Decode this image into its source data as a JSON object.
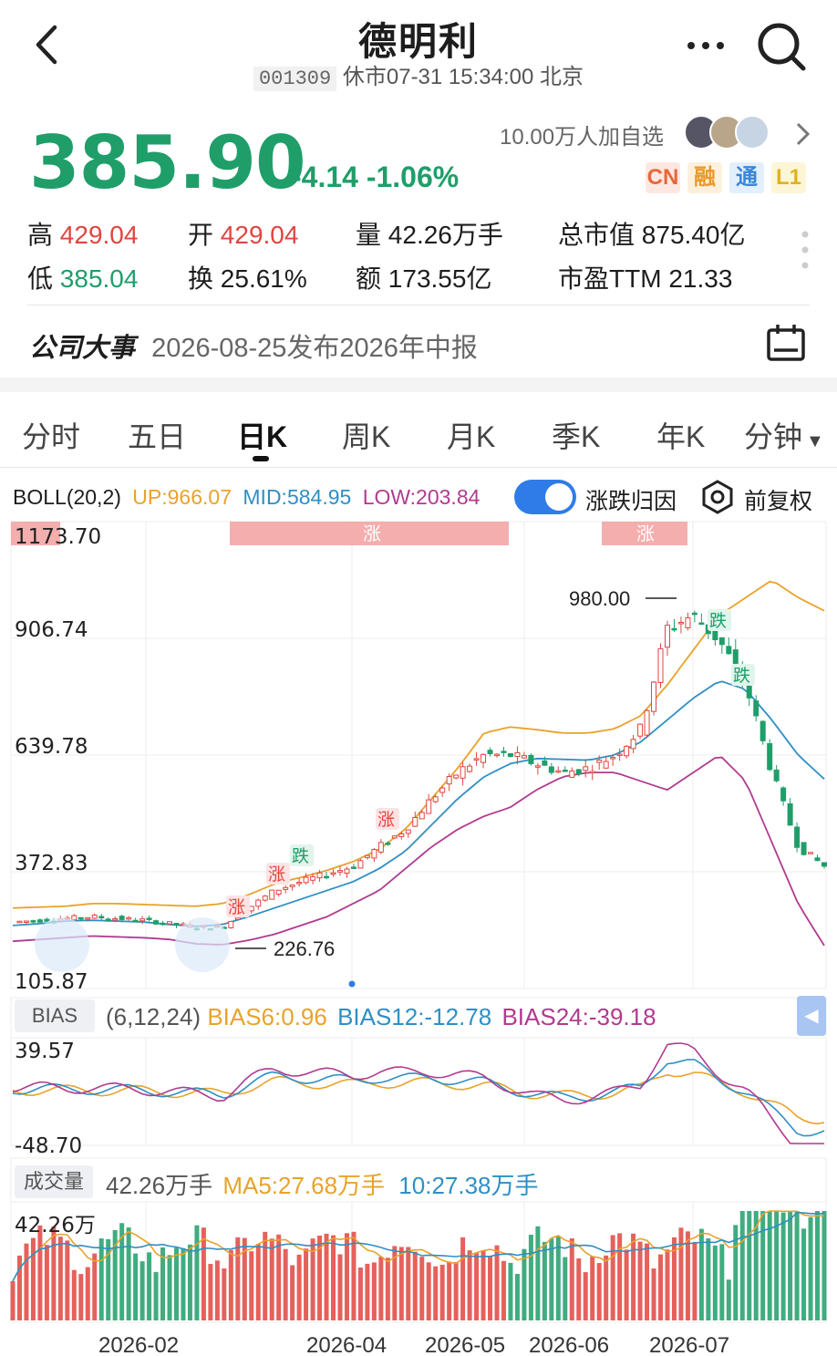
{
  "header": {
    "back_icon": "chevron-left-icon",
    "title": "德明利",
    "stock_code": "001309",
    "status_text": "休市07-31 15:34:00 北京",
    "more_icon": "more-icon",
    "search_icon": "search-icon"
  },
  "quote": {
    "price": "385.90",
    "change": "-4.14",
    "change_pct": "-1.06%",
    "follow_text": "10.00万人加自选",
    "badges": [
      "CN",
      "融",
      "通",
      "L1"
    ],
    "high_label": "高",
    "high": "429.04",
    "open_label": "开",
    "open": "429.04",
    "volume_label": "量",
    "volume": "42.26万手",
    "mktcap_label": "总市值",
    "mktcap": "875.40亿",
    "low_label": "低",
    "low": "385.04",
    "turnover_label": "换",
    "turnover": "25.61%",
    "amount_label": "额",
    "amount": "173.55亿",
    "pe_label": "市盈TTM",
    "pe": "21.33"
  },
  "event": {
    "label": "公司大事",
    "text": "2026-08-25发布2026年中报",
    "icon": "calendar-icon"
  },
  "tabs": [
    "分时",
    "五日",
    "日K",
    "周K",
    "月K",
    "季K",
    "年K",
    "分钟"
  ],
  "active_tab": "日K",
  "boll": {
    "name": "BOLL(20,2)",
    "up": "UP:966.07",
    "mid": "MID:584.95",
    "low": "LOW:203.84",
    "toggle_label": "涨跌归因",
    "fq_label": "前复权",
    "fq_icon": "gear-icon"
  },
  "bias": {
    "name": "BIAS",
    "params": "(6,12,24)",
    "b6": "BIAS6:0.96",
    "b12": "BIAS12:-12.78",
    "b24": "BIAS24:-39.18",
    "ymax": "39.57",
    "ymin": "-48.70"
  },
  "vol": {
    "name": "成交量",
    "value": "42.26万手",
    "ma5": "MA5:27.68万手",
    "ma10": "10:27.38万手",
    "ymax": "42.26万"
  },
  "markers": {
    "up_label": "涨",
    "down_label": "跌",
    "max_label": "980.00",
    "min_label": "226.76"
  },
  "colors": {
    "up": "#e0453f",
    "down": "#1f9e6a",
    "boll_up": "#e8a32a",
    "boll_mid": "#2f8fc4",
    "boll_low": "#b03b8f"
  },
  "chart_data": {
    "type": "line",
    "title": "",
    "x_ticks": [
      "2026-02",
      "2026-04",
      "2026-05",
      "2026-06",
      "2026-07"
    ],
    "y_ticks": [
      1173.7,
      906.74,
      639.78,
      372.83,
      105.87
    ],
    "ylim": [
      105.87,
      1173.7
    ],
    "series": [
      {
        "name": "UP",
        "values": [
          290,
          292,
          294,
          300,
          300,
          298,
          296,
          294,
          300,
          320,
          345,
          360,
          376,
          396,
          424,
          470,
          540,
          610,
          690,
          704,
          698,
          690,
          690,
          700,
          730,
          800,
          880,
          960,
          1000,
          1040,
          1000,
          970
        ]
      },
      {
        "name": "MID",
        "values": [
          250,
          254,
          260,
          262,
          260,
          258,
          252,
          248,
          252,
          270,
          290,
          310,
          330,
          350,
          380,
          420,
          480,
          540,
          590,
          620,
          632,
          630,
          628,
          640,
          670,
          720,
          770,
          810,
          790,
          720,
          640,
          585
        ]
      },
      {
        "name": "LOW",
        "values": [
          214,
          218,
          222,
          226,
          224,
          222,
          218,
          208,
          206,
          216,
          230,
          250,
          270,
          300,
          330,
          380,
          430,
          470,
          500,
          520,
          560,
          590,
          600,
          600,
          580,
          560,
          600,
          640,
          580,
          440,
          300,
          204
        ]
      },
      {
        "name": "Close",
        "values": [
          258,
          262,
          266,
          270,
          266,
          262,
          254,
          246,
          246,
          290,
          330,
          350,
          368,
          385,
          430,
          470,
          540,
          600,
          640,
          640,
          620,
          600,
          610,
          640,
          700,
          930,
          960,
          900,
          800,
          600,
          430,
          386
        ]
      }
    ]
  }
}
